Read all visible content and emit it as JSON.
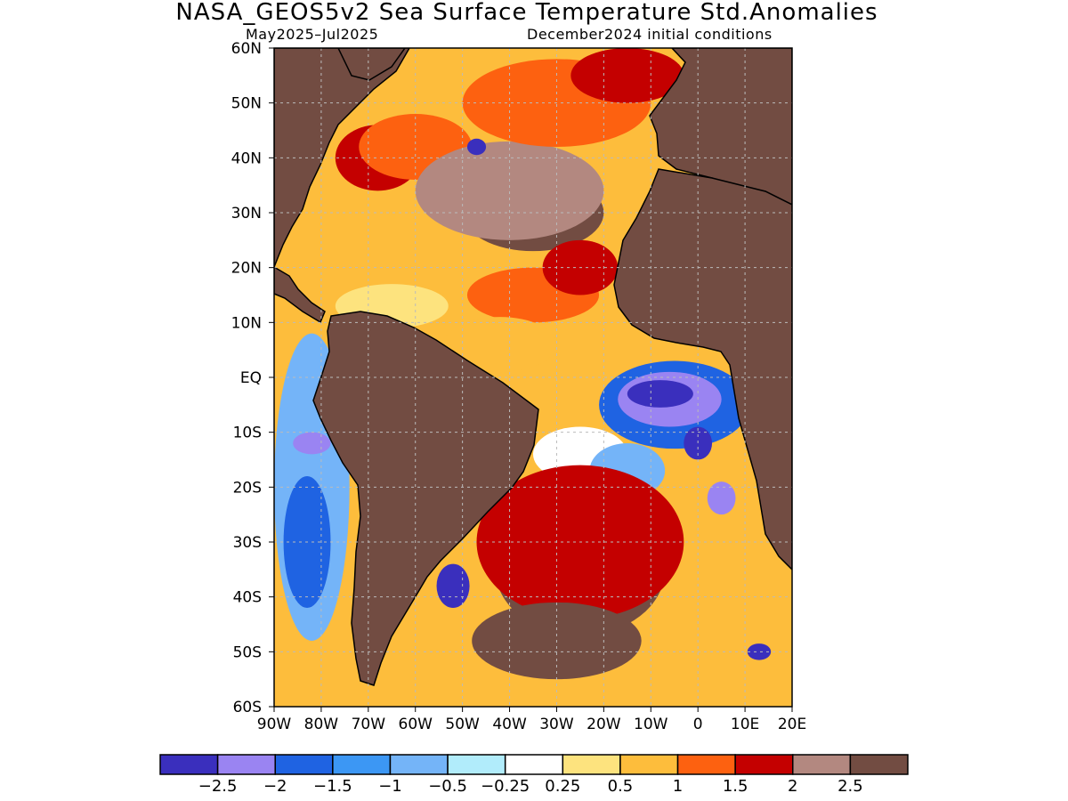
{
  "title": "NASA_GEOS5v2 Sea Surface Temperature Std.Anomalies",
  "subtitle_left": "May2025–Jul2025",
  "subtitle_right": "December2024 initial conditions",
  "map": {
    "lon_range": [
      -90,
      20
    ],
    "lat_range": [
      -60,
      60
    ],
    "lat_ticks": [
      {
        "value": 60,
        "label": "60N"
      },
      {
        "value": 50,
        "label": "50N"
      },
      {
        "value": 40,
        "label": "40N"
      },
      {
        "value": 30,
        "label": "30N"
      },
      {
        "value": 20,
        "label": "20N"
      },
      {
        "value": 10,
        "label": "10N"
      },
      {
        "value": 0,
        "label": "EQ"
      },
      {
        "value": -10,
        "label": "10S"
      },
      {
        "value": -20,
        "label": "20S"
      },
      {
        "value": -30,
        "label": "30S"
      },
      {
        "value": -40,
        "label": "40S"
      },
      {
        "value": -50,
        "label": "50S"
      },
      {
        "value": -60,
        "label": "60S"
      }
    ],
    "lon_ticks": [
      {
        "value": -90,
        "label": "90W"
      },
      {
        "value": -80,
        "label": "80W"
      },
      {
        "value": -70,
        "label": "70W"
      },
      {
        "value": -60,
        "label": "60W"
      },
      {
        "value": -50,
        "label": "50W"
      },
      {
        "value": -40,
        "label": "40W"
      },
      {
        "value": -30,
        "label": "30W"
      },
      {
        "value": -20,
        "label": "20W"
      },
      {
        "value": -10,
        "label": "10W"
      },
      {
        "value": 0,
        "label": "0"
      },
      {
        "value": 10,
        "label": "10E"
      },
      {
        "value": 20,
        "label": "20E"
      }
    ],
    "grid": "dashed",
    "land_color": "#724c42",
    "ocean_background_color": "#fdbd3c"
  },
  "colorbar": {
    "colors": [
      "#3a2fbd",
      "#9a84f2",
      "#1f63e2",
      "#3c97f4",
      "#74b4f8",
      "#b1ecfb",
      "#ffffff",
      "#fde37e",
      "#fdbd3c",
      "#fd6110",
      "#c40000",
      "#b38880",
      "#724c42"
    ],
    "labels": [
      "−2.5",
      "−2",
      "−1.5",
      "−1",
      "−0.5",
      "−0.25",
      "0.25",
      "0.5",
      "1",
      "1.5",
      "2",
      "2.5"
    ]
  },
  "regions": [
    {
      "name": "north-american-coastal-anomaly",
      "color": "#c40000",
      "lon": -68,
      "lat": 40,
      "rx": 9,
      "ry": 6
    },
    {
      "name": "gulf-stream-warm-band",
      "color": "#fd6110",
      "lon": -60,
      "lat": 42,
      "rx": 12,
      "ry": 6
    },
    {
      "name": "subtropical-north-atlantic-extreme",
      "color": "#724c42",
      "lon": -35,
      "lat": 30,
      "rx": 15,
      "ry": 7
    },
    {
      "name": "subtropical-north-atlantic-strong",
      "color": "#b38880",
      "lon": -40,
      "lat": 34,
      "rx": 20,
      "ry": 9
    },
    {
      "name": "north-atlantic-subpolar-warm",
      "color": "#fd6110",
      "lon": -30,
      "lat": 50,
      "rx": 20,
      "ry": 8
    },
    {
      "name": "iceland-region-anomaly",
      "color": "#c40000",
      "lon": -15,
      "lat": 55,
      "rx": 12,
      "ry": 5
    },
    {
      "name": "labrador-sea-cold-patch",
      "color": "#3a2fbd",
      "lon": -47,
      "lat": 42,
      "rx": 2,
      "ry": 1.5
    },
    {
      "name": "caribbean-weak-warm",
      "color": "#fde37e",
      "lon": -65,
      "lat": 13,
      "rx": 12,
      "ry": 4
    },
    {
      "name": "tropical-north-atlantic-warm",
      "color": "#fd6110",
      "lon": -35,
      "lat": 15,
      "rx": 14,
      "ry": 5
    },
    {
      "name": "canary-upwelling-strong",
      "color": "#c40000",
      "lon": -25,
      "lat": 20,
      "rx": 8,
      "ry": 5
    },
    {
      "name": "equatorial-amazon-plume",
      "color": "#fdbd3c",
      "lon": -42,
      "lat": 6,
      "rx": 12,
      "ry": 5
    },
    {
      "name": "gulf-of-guinea-cold",
      "color": "#1f63e2",
      "lon": -5,
      "lat": -5,
      "rx": 16,
      "ry": 8
    },
    {
      "name": "gulf-of-guinea-colder",
      "color": "#9a84f2",
      "lon": -6,
      "lat": -4,
      "rx": 11,
      "ry": 5
    },
    {
      "name": "gulf-of-guinea-coldest",
      "color": "#3a2fbd",
      "lon": -8,
      "lat": -3,
      "rx": 7,
      "ry": 2.5
    },
    {
      "name": "angola-cold-tongue",
      "color": "#3a2fbd",
      "lon": 0,
      "lat": -12,
      "rx": 3,
      "ry": 3
    },
    {
      "name": "benguela-cold",
      "color": "#9a84f2",
      "lon": 5,
      "lat": -22,
      "rx": 3,
      "ry": 3
    },
    {
      "name": "south-atlantic-neutral",
      "color": "#ffffff",
      "lon": -25,
      "lat": -14,
      "rx": 10,
      "ry": 5
    },
    {
      "name": "south-atlantic-cool-band",
      "color": "#74b4f8",
      "lon": -15,
      "lat": -17,
      "rx": 8,
      "ry": 5
    },
    {
      "name": "south-atlantic-subtropical-extreme",
      "color": "#724c42",
      "lon": -25,
      "lat": -35,
      "rx": 18,
      "ry": 12
    },
    {
      "name": "south-atlantic-warm-rim",
      "color": "#c40000",
      "lon": -25,
      "lat": -30,
      "rx": 22,
      "ry": 14
    },
    {
      "name": "argentine-shelf-cold",
      "color": "#3a2fbd",
      "lon": -52,
      "lat": -38,
      "rx": 3.5,
      "ry": 4
    },
    {
      "name": "southern-ocean-extreme",
      "color": "#724c42",
      "lon": -30,
      "lat": -48,
      "rx": 18,
      "ry": 7
    },
    {
      "name": "southern-ocean-cold-patch",
      "color": "#3a2fbd",
      "lon": 13,
      "lat": -50,
      "rx": 2.5,
      "ry": 1.5
    },
    {
      "name": "pacific-coastal-cold",
      "color": "#74b4f8",
      "lon": -82,
      "lat": -20,
      "rx": 8,
      "ry": 28
    },
    {
      "name": "pacific-humboldt-colder",
      "color": "#1f63e2",
      "lon": -83,
      "lat": -30,
      "rx": 5,
      "ry": 12
    },
    {
      "name": "pacific-humboldt-coldest",
      "color": "#9a84f2",
      "lon": -82,
      "lat": -12,
      "rx": 4,
      "ry": 2
    }
  ]
}
